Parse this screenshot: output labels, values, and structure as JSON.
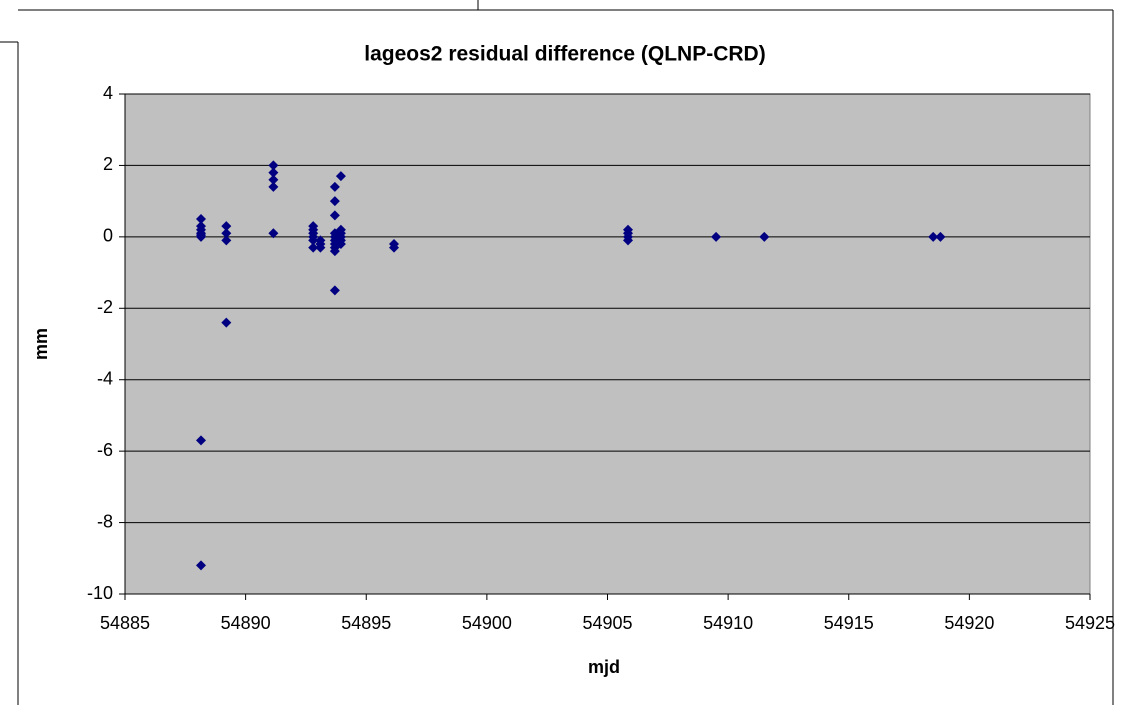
{
  "chart_data": {
    "type": "scatter",
    "title": "lageos2 residual difference (QLNP-CRD)",
    "x_label": "mjd",
    "y_label": "mm",
    "xlim": [
      54885,
      54925
    ],
    "xticks": [
      54885,
      54890,
      54895,
      54900,
      54905,
      54910,
      54915,
      54920,
      54925
    ],
    "ylim": [
      -10,
      4
    ],
    "yticks": [
      -10,
      -8,
      -6,
      -4,
      -2,
      0,
      2,
      4
    ],
    "grid": true,
    "color": "#000080",
    "background": "#c0c0c0",
    "x": [
      54888.15,
      54888.15,
      54888.15,
      54888.15,
      54888.15,
      54888.15,
      54888.15,
      54888.15,
      54889.2,
      54889.2,
      54889.2,
      54889.2,
      54891.15,
      54891.15,
      54891.15,
      54891.15,
      54891.15,
      54892.8,
      54892.8,
      54892.8,
      54892.8,
      54892.8,
      54892.8,
      54893.1,
      54893.1,
      54893.1,
      54893.7,
      54893.7,
      54893.7,
      54893.7,
      54893.7,
      54893.7,
      54893.7,
      54893.7,
      54893.7,
      54893.7,
      54893.95,
      54893.95,
      54893.95,
      54893.95,
      54893.95,
      54893.95,
      54896.15,
      54896.15,
      54905.85,
      54905.85,
      54905.85,
      54905.85,
      54909.5,
      54911.5,
      54918.5,
      54918.8
    ],
    "y": [
      0.5,
      0.3,
      0.2,
      0.1,
      0,
      0.05,
      -5.7,
      -9.2,
      0.3,
      0.1,
      -0.1,
      -2.4,
      2.0,
      1.8,
      1.6,
      1.4,
      0.1,
      0.3,
      0.2,
      0.1,
      0,
      -0.1,
      -0.3,
      -0.1,
      -0.3,
      -0.2,
      0.6,
      1.4,
      1.0,
      -1.5,
      -0.1,
      -0.2,
      -0.3,
      -0.4,
      0,
      0.1,
      1.7,
      0.2,
      0.1,
      0,
      -0.1,
      -0.2,
      -0.2,
      -0.3,
      0.2,
      0.1,
      0,
      -0.1,
      0,
      0,
      0,
      0
    ]
  }
}
